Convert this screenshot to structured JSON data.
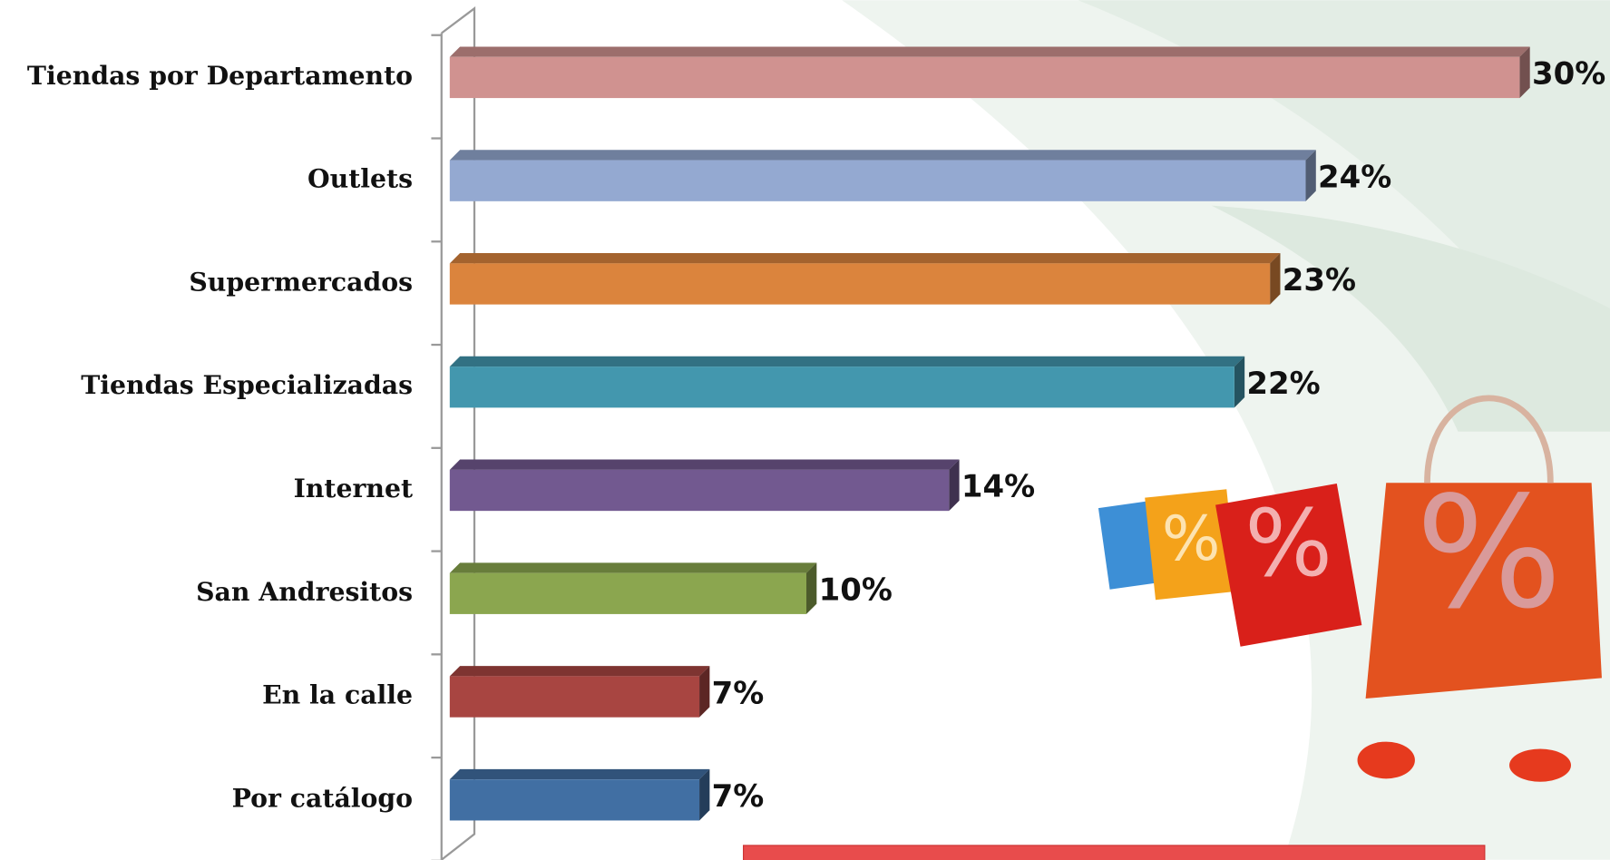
{
  "chart_data": {
    "type": "bar",
    "categories": [
      "Tiendas por Departamento",
      "Outlets",
      "Supermercados",
      "Tiendas Especializadas",
      "Internet",
      "San Andresitos",
      "En la calle",
      "Por catálogo"
    ],
    "values": [
      30,
      24,
      23,
      22,
      14,
      10,
      7,
      7
    ],
    "value_labels": [
      "30%",
      "24%",
      "23%",
      "22%",
      "14%",
      "10%",
      "7%",
      "7%"
    ],
    "colors": [
      "#d09290",
      "#94a9d1",
      "#db843d",
      "#4397ae",
      "#725990",
      "#8ba64f",
      "#a84541",
      "#416fa3"
    ]
  }
}
